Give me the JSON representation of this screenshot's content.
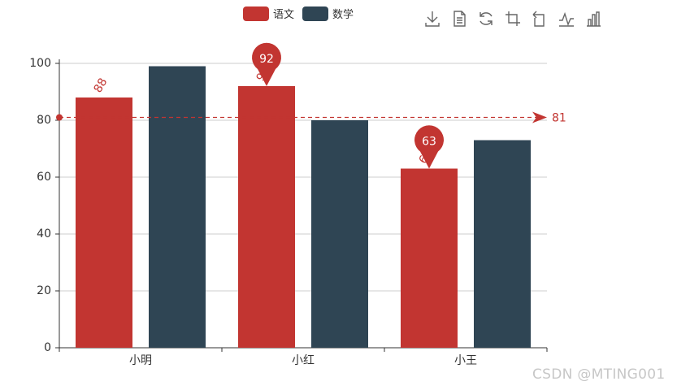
{
  "legend": [
    {
      "name": "语文",
      "color": "#c23531"
    },
    {
      "name": "数学",
      "color": "#2f4554"
    }
  ],
  "toolbox": [
    {
      "name": "download-icon",
      "label": "保存为图片"
    },
    {
      "name": "data-view-icon",
      "label": "数据视图"
    },
    {
      "name": "refresh-icon",
      "label": "还原"
    },
    {
      "name": "zoom-area-icon",
      "label": "区域缩放"
    },
    {
      "name": "zoom-reset-icon",
      "label": "区域缩放还原"
    },
    {
      "name": "line-chart-icon",
      "label": "切换为折线图"
    },
    {
      "name": "bar-chart-icon",
      "label": "切换为柱状图"
    }
  ],
  "watermark": "CSDN @MTING001",
  "chart_data": {
    "type": "bar",
    "categories": [
      "小明",
      "小红",
      "小王"
    ],
    "series": [
      {
        "name": "语文",
        "values": [
          88,
          92,
          63
        ],
        "color": "#c23531",
        "labels": [
          "88",
          "92",
          "63"
        ],
        "markPoints": [
          {
            "value": 92,
            "category": "小红"
          },
          {
            "value": 63,
            "category": "小王"
          }
        ],
        "markLine": {
          "value": 81
        }
      },
      {
        "name": "数学",
        "values": [
          99,
          80,
          73
        ],
        "color": "#2f4554"
      }
    ],
    "ylim": [
      0,
      100
    ],
    "yticks": [
      0,
      20,
      40,
      60,
      80,
      100
    ],
    "grid": true,
    "legend_position": "top-center"
  },
  "colors": {
    "axis": "#333333",
    "grid": "#cccccc",
    "text": "#333333"
  }
}
